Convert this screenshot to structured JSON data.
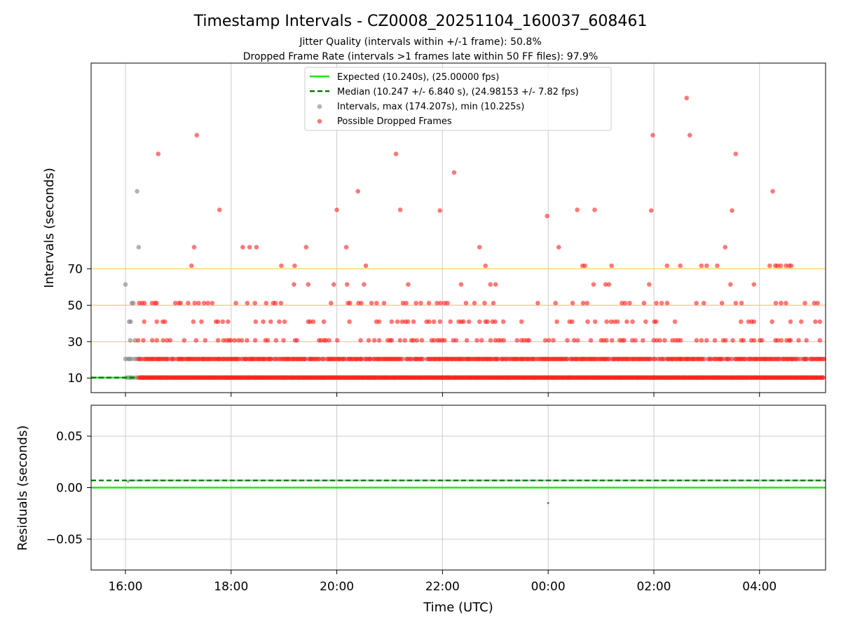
{
  "chart_data": {
    "type": "scatter",
    "title": "Timestamp Intervals - CZ0008_20251104_160037_608461",
    "subtitles": [
      "Jitter Quality (intervals within +/-1 frame): 50.8%",
      "Dropped Frame Rate (intervals >1 frames late within 50 FF files): 97.9%"
    ],
    "xlabel": "Time (UTC)",
    "x_ticks": [
      "16:00",
      "18:00",
      "20:00",
      "22:00",
      "00:00",
      "02:00",
      "04:00"
    ],
    "x_tick_hours": [
      16,
      18,
      20,
      22,
      24,
      26,
      28
    ],
    "x_range_hours": [
      15.35,
      29.25
    ],
    "top_panel": {
      "ylabel": "Intervals (seconds)",
      "y_ticks": [
        10,
        30,
        50,
        70
      ],
      "y_range": [
        2,
        183
      ],
      "reference_lines": [
        30,
        50,
        70
      ],
      "expected_line": 10.24,
      "median_line": 10.247,
      "legend": [
        "Expected (10.240s), (25.00000 fps)",
        "Median (10.247 +/- 6.840 s), (24.98153 +/- 7.82 fps)",
        "Intervals, max (174.207s), min (10.225s)",
        "Possible Dropped Frames"
      ],
      "levels": [
        10.24,
        20.48,
        30.72,
        40.96,
        51.2,
        61.44,
        71.68,
        81.92
      ],
      "normal_points": [
        [
          16.0,
          20.5
        ],
        [
          16.05,
          20.5
        ],
        [
          16.08,
          20.5
        ],
        [
          16.12,
          20.5
        ],
        [
          16.18,
          20.5
        ],
        [
          16.22,
          20.5
        ],
        [
          16.02,
          10.24
        ],
        [
          16.07,
          10.24
        ],
        [
          16.1,
          10.24
        ],
        [
          16.14,
          10.24
        ],
        [
          16.2,
          10.24
        ],
        [
          16.07,
          40.96
        ],
        [
          16.1,
          40.96
        ],
        [
          16.12,
          51.2
        ],
        [
          16.15,
          51.2
        ],
        [
          16.09,
          30.7
        ],
        [
          16.18,
          30.7
        ],
        [
          16.0,
          61.4
        ],
        [
          16.25,
          81.9
        ],
        [
          16.22,
          112.6
        ]
      ],
      "dropped_points": [
        [
          16.62,
          133.1
        ],
        [
          17.35,
          143.4
        ],
        [
          17.78,
          102.4
        ],
        [
          17.3,
          81.9
        ],
        [
          17.25,
          71.7
        ],
        [
          18.22,
          81.9
        ],
        [
          18.35,
          81.9
        ],
        [
          18.48,
          81.9
        ],
        [
          18.95,
          71.7
        ],
        [
          19.42,
          81.9
        ],
        [
          20.0,
          102.4
        ],
        [
          20.18,
          81.9
        ],
        [
          20.4,
          112.6
        ],
        [
          20.55,
          71.7
        ],
        [
          21.12,
          133.1
        ],
        [
          21.2,
          102.4
        ],
        [
          21.95,
          102.0
        ],
        [
          22.22,
          122.9
        ],
        [
          22.7,
          81.9
        ],
        [
          23.98,
          99.0
        ],
        [
          24.2,
          81.9
        ],
        [
          24.55,
          102.4
        ],
        [
          24.65,
          71.7
        ],
        [
          24.88,
          102.4
        ],
        [
          25.2,
          71.7
        ],
        [
          25.95,
          102.0
        ],
        [
          25.98,
          143.4
        ],
        [
          26.25,
          71.7
        ],
        [
          26.5,
          71.7
        ],
        [
          26.62,
          163.8
        ],
        [
          26.68,
          143.4
        ],
        [
          26.9,
          71.7
        ],
        [
          27.0,
          71.7
        ],
        [
          27.2,
          71.7
        ],
        [
          27.35,
          81.9
        ],
        [
          27.48,
          102.0
        ],
        [
          27.55,
          133.1
        ],
        [
          28.25,
          112.6
        ],
        [
          28.3,
          71.7
        ],
        [
          28.4,
          71.7
        ],
        [
          28.5,
          71.7
        ],
        [
          28.6,
          71.7
        ]
      ]
    },
    "bottom_panel": {
      "ylabel": "Residuals (seconds)",
      "y_ticks": [
        "0.05",
        "0.00",
        "−0.05"
      ],
      "y_tick_values": [
        0.05,
        0.0,
        -0.05
      ],
      "y_range": [
        -0.08,
        0.08
      ],
      "expected_line": 0.0,
      "median_line": 0.007,
      "outlier": [
        24.0,
        -0.015
      ]
    },
    "colors": {
      "expected": "#22e022",
      "median": "#007a00",
      "normal": "#808080",
      "dropped": "#ff2020",
      "reference": "#ffcc55",
      "grid": "#cccccc"
    }
  }
}
